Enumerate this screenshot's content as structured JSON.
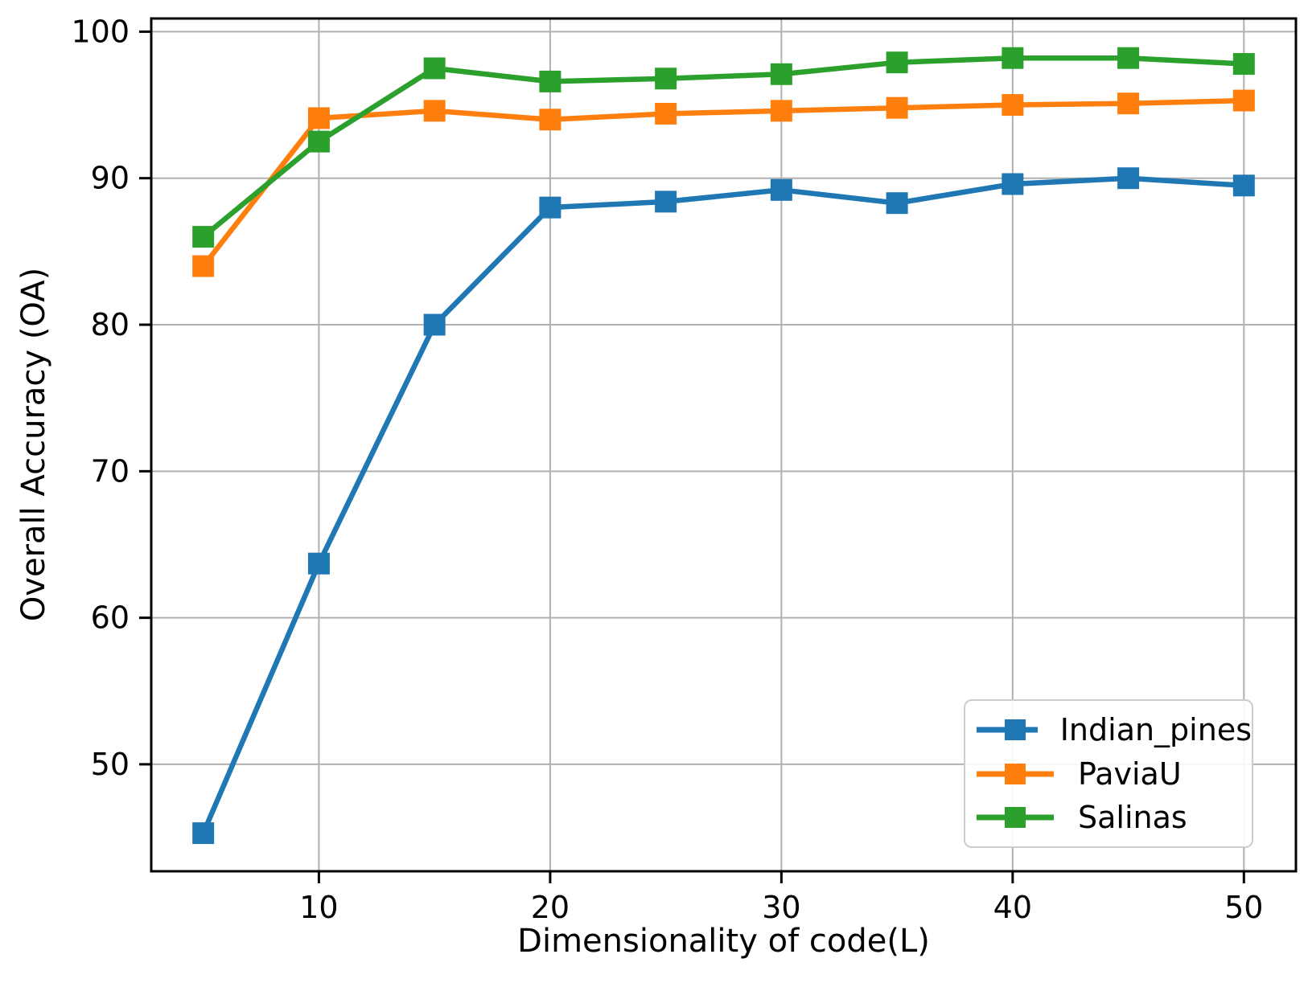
{
  "chart_data": {
    "type": "line",
    "title": "",
    "xlabel": "Dimensionality of code(L)",
    "ylabel": "Overall Accuracy (OA)",
    "x": [
      5,
      10,
      15,
      20,
      25,
      30,
      35,
      40,
      45,
      50
    ],
    "series": [
      {
        "name": "Indian_pines",
        "color": "#1f77b4",
        "marker": "square",
        "values": [
          45.3,
          63.7,
          80.0,
          88.0,
          88.4,
          89.2,
          88.3,
          89.6,
          90.0,
          89.5
        ]
      },
      {
        "name": "PaviaU",
        "color": "#ff7f0e",
        "marker": "square",
        "values": [
          84.0,
          94.1,
          94.6,
          94.0,
          94.4,
          94.6,
          94.8,
          95.0,
          95.1,
          95.3
        ]
      },
      {
        "name": "Salinas",
        "color": "#2ca02c",
        "marker": "square",
        "values": [
          86.0,
          92.5,
          97.5,
          96.6,
          96.8,
          97.1,
          97.9,
          98.2,
          98.2,
          97.8
        ]
      }
    ],
    "xticks": [
      10,
      20,
      30,
      40,
      50
    ],
    "yticks": [
      50,
      60,
      70,
      80,
      90,
      100
    ],
    "xlim": [
      2.75,
      52.25
    ],
    "ylim": [
      42.7,
      100.9
    ],
    "grid": true,
    "grid_color": "#b0b0b0",
    "spine_color": "#000000",
    "legend_position": "lower right"
  }
}
